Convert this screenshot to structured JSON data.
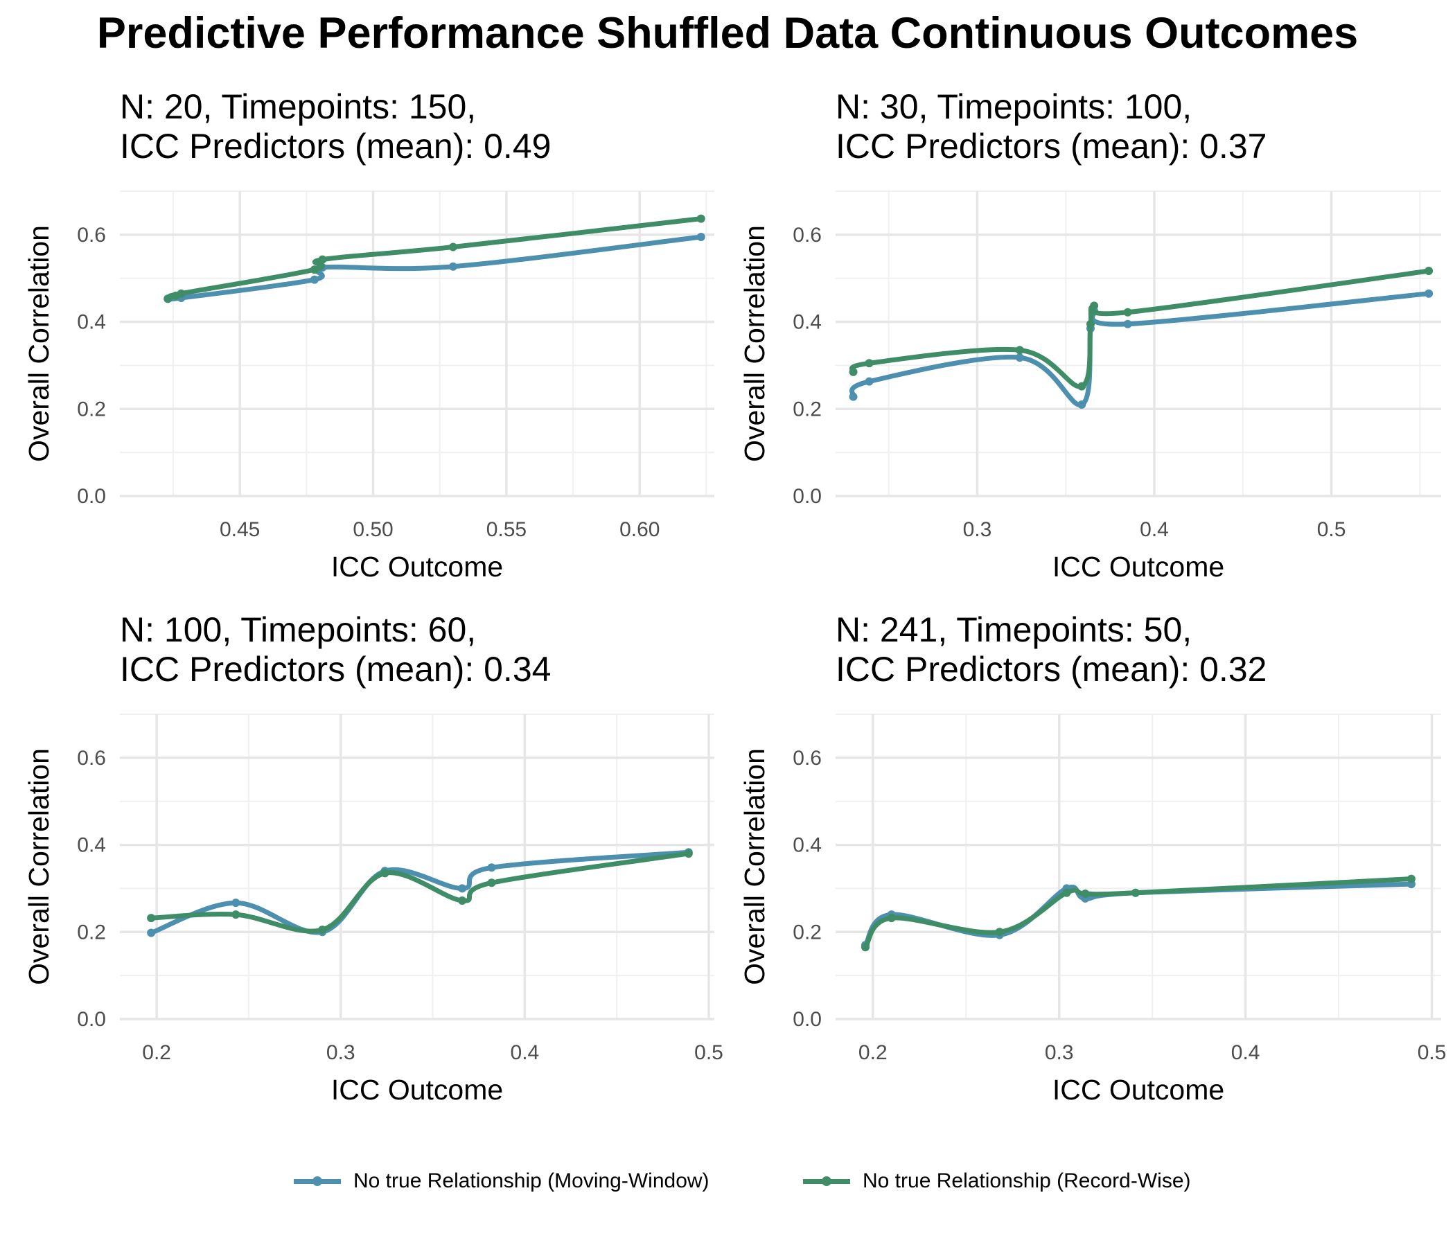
{
  "title": "Predictive Performance Shuffled Data Continuous Outcomes",
  "legend": {
    "items": [
      {
        "label": "No true Relationship (Moving-Window)",
        "color": "#4c8fae"
      },
      {
        "label": "No true Relationship (Record-Wise)",
        "color": "#3f8d67"
      }
    ]
  },
  "chart_data": [
    {
      "type": "line",
      "title_line1": "N: 20, Timepoints: 150,",
      "title_line2": "ICC Predictors (mean): 0.49",
      "xlabel": "ICC Outcome",
      "ylabel": "Overall Correlation",
      "xlim": [
        0.405,
        0.628
      ],
      "ylim": [
        0,
        0.7
      ],
      "xticks": [
        0.45,
        0.5,
        0.55,
        0.6
      ],
      "xtick_labels": [
        "0.45",
        "0.50",
        "0.55",
        "0.60"
      ],
      "yticks": [
        0,
        0.2,
        0.4,
        0.6
      ],
      "ytick_labels": [
        "0.0",
        "0.2",
        "0.4",
        "0.6"
      ],
      "series": [
        {
          "name": "No true Relationship (Moving-Window)",
          "color": "#4c8fae",
          "x": [
            0.423,
            0.428,
            0.478,
            0.481,
            0.53,
            0.623
          ],
          "y": [
            0.453,
            0.455,
            0.497,
            0.525,
            0.527,
            0.595
          ]
        },
        {
          "name": "No true Relationship (Record-Wise)",
          "color": "#3f8d67",
          "x": [
            0.423,
            0.426,
            0.428,
            0.478,
            0.481,
            0.53,
            0.623
          ],
          "y": [
            0.453,
            0.46,
            0.465,
            0.52,
            0.543,
            0.572,
            0.637
          ]
        }
      ]
    },
    {
      "type": "line",
      "title_line1": "N: 30, Timepoints: 100,",
      "title_line2": "ICC Predictors (mean): 0.37",
      "xlabel": "ICC Outcome",
      "ylabel": "Overall Correlation",
      "xlim": [
        0.22,
        0.562
      ],
      "ylim": [
        0,
        0.7
      ],
      "xticks": [
        0.3,
        0.4,
        0.5
      ],
      "xtick_labels": [
        "0.3",
        "0.4",
        "0.5"
      ],
      "yticks": [
        0,
        0.2,
        0.4,
        0.6
      ],
      "ytick_labels": [
        "0.0",
        "0.2",
        "0.4",
        "0.6"
      ],
      "series": [
        {
          "name": "No true Relationship (Moving-Window)",
          "color": "#4c8fae",
          "x": [
            0.23,
            0.239,
            0.324,
            0.359,
            0.364,
            0.366,
            0.385,
            0.555
          ],
          "y": [
            0.228,
            0.263,
            0.318,
            0.21,
            0.385,
            0.425,
            0.395,
            0.465
          ]
        },
        {
          "name": "No true Relationship (Record-Wise)",
          "color": "#3f8d67",
          "x": [
            0.23,
            0.239,
            0.324,
            0.359,
            0.364,
            0.366,
            0.385,
            0.555
          ],
          "y": [
            0.285,
            0.305,
            0.335,
            0.252,
            0.395,
            0.437,
            0.422,
            0.517
          ]
        }
      ]
    },
    {
      "type": "line",
      "title_line1": "N: 100, Timepoints: 60,",
      "title_line2": "ICC Predictors (mean): 0.34",
      "xlabel": "ICC Outcome",
      "ylabel": "Overall Correlation",
      "xlim": [
        0.18,
        0.503
      ],
      "ylim": [
        0,
        0.7
      ],
      "xticks": [
        0.2,
        0.3,
        0.4,
        0.5
      ],
      "xtick_labels": [
        "0.2",
        "0.3",
        "0.4",
        "0.5"
      ],
      "yticks": [
        0,
        0.2,
        0.4,
        0.6
      ],
      "ytick_labels": [
        "0.0",
        "0.2",
        "0.4",
        "0.6"
      ],
      "series": [
        {
          "name": "No true Relationship (Moving-Window)",
          "color": "#4c8fae",
          "x": [
            0.197,
            0.243,
            0.29,
            0.324,
            0.366,
            0.382,
            0.489
          ],
          "y": [
            0.198,
            0.267,
            0.2,
            0.34,
            0.3,
            0.348,
            0.383
          ]
        },
        {
          "name": "No true Relationship (Record-Wise)",
          "color": "#3f8d67",
          "x": [
            0.197,
            0.243,
            0.29,
            0.324,
            0.366,
            0.382,
            0.489
          ],
          "y": [
            0.232,
            0.24,
            0.205,
            0.335,
            0.272,
            0.313,
            0.38
          ]
        }
      ]
    },
    {
      "type": "line",
      "title_line1": "N: 241, Timepoints: 50,",
      "title_line2": "ICC Predictors (mean): 0.32",
      "xlabel": "ICC Outcome",
      "ylabel": "Overall Correlation",
      "xlim": [
        0.18,
        0.505
      ],
      "ylim": [
        0,
        0.7
      ],
      "xticks": [
        0.2,
        0.3,
        0.4,
        0.5
      ],
      "xtick_labels": [
        "0.2",
        "0.3",
        "0.4",
        "0.5"
      ],
      "yticks": [
        0,
        0.2,
        0.4,
        0.6
      ],
      "ytick_labels": [
        "0.0",
        "0.2",
        "0.4",
        "0.6"
      ],
      "series": [
        {
          "name": "No true Relationship (Moving-Window)",
          "color": "#4c8fae",
          "x": [
            0.196,
            0.21,
            0.268,
            0.304,
            0.314,
            0.341,
            0.489
          ],
          "y": [
            0.17,
            0.24,
            0.193,
            0.3,
            0.277,
            0.29,
            0.31
          ]
        },
        {
          "name": "No true Relationship (Record-Wise)",
          "color": "#3f8d67",
          "x": [
            0.196,
            0.21,
            0.268,
            0.304,
            0.314,
            0.341,
            0.489
          ],
          "y": [
            0.165,
            0.232,
            0.2,
            0.29,
            0.288,
            0.29,
            0.322
          ]
        }
      ]
    }
  ]
}
